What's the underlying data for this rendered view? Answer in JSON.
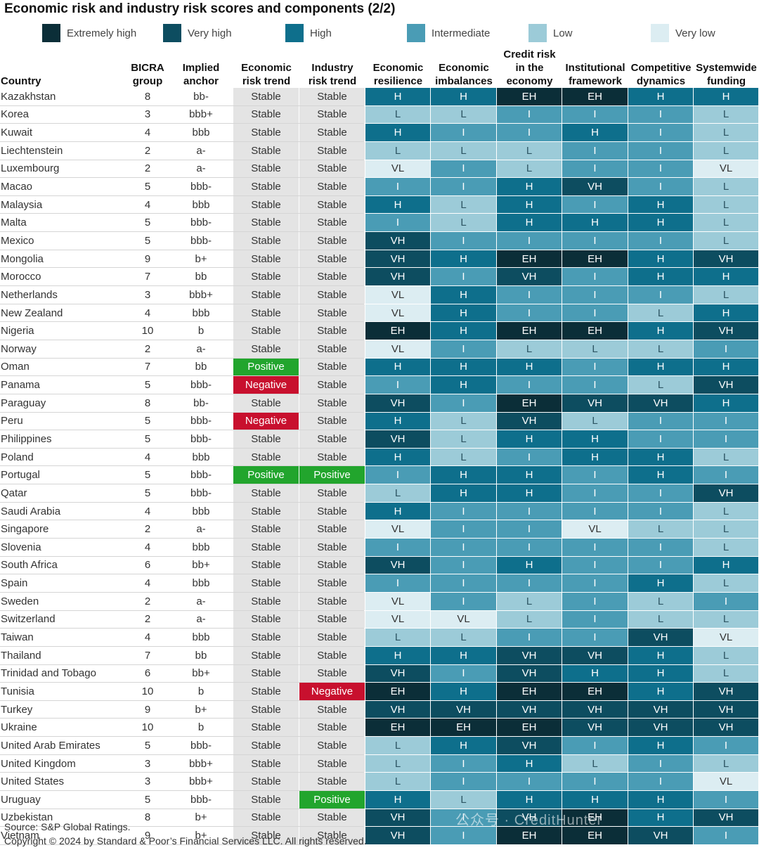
{
  "title": "Economic risk and industry risk scores and components (2/2)",
  "legend": [
    {
      "label": "Extremely high",
      "color": "#0b2e38"
    },
    {
      "label": "Very high",
      "color": "#0d4d60"
    },
    {
      "label": "High",
      "color": "#0e6f8c"
    },
    {
      "label": "Intermediate",
      "color": "#4a9cb5"
    },
    {
      "label": "Low",
      "color": "#9ccbd8"
    },
    {
      "label": "Very low",
      "color": "#dcedf2"
    }
  ],
  "score_colors": {
    "EH": "#0b2e38",
    "VH": "#0d4d60",
    "H": "#0e6f8c",
    "I": "#4a9cb5",
    "L": "#9ccbd8",
    "VL": "#dcedf2"
  },
  "score_text_colors": {
    "EH": "#ffffff",
    "VH": "#ffffff",
    "H": "#ffffff",
    "I": "#ffffff",
    "L": "#2d5563",
    "VL": "#333333"
  },
  "headers": [
    "Country",
    "BICRA\ngroup",
    "Implied\nanchor",
    "Economic\nrisk trend",
    "Industry\nrisk trend",
    "Economic\nresilience",
    "Economic\nimbalances",
    "Credit risk\nin the\neconomy",
    "Institutional\nframework",
    "Competitive\ndynamics",
    "Systemwide\nfunding"
  ],
  "chart_data": {
    "type": "table",
    "columns": [
      "Country",
      "BICRA group",
      "Implied anchor",
      "Economic risk trend",
      "Industry risk trend",
      "Economic resilience",
      "Economic imbalances",
      "Credit risk in the economy",
      "Institutional framework",
      "Competitive dynamics",
      "Systemwide funding"
    ],
    "rows": [
      [
        "Kazakhstan",
        "8",
        "bb-",
        "Stable",
        "Stable",
        "H",
        "H",
        "EH",
        "EH",
        "H",
        "H"
      ],
      [
        "Korea",
        "3",
        "bbb+",
        "Stable",
        "Stable",
        "L",
        "L",
        "I",
        "I",
        "I",
        "L"
      ],
      [
        "Kuwait",
        "4",
        "bbb",
        "Stable",
        "Stable",
        "H",
        "I",
        "I",
        "H",
        "I",
        "L"
      ],
      [
        "Liechtenstein",
        "2",
        "a-",
        "Stable",
        "Stable",
        "L",
        "L",
        "L",
        "I",
        "I",
        "L"
      ],
      [
        "Luxembourg",
        "2",
        "a-",
        "Stable",
        "Stable",
        "VL",
        "I",
        "L",
        "I",
        "I",
        "VL"
      ],
      [
        "Macao",
        "5",
        "bbb-",
        "Stable",
        "Stable",
        "I",
        "I",
        "H",
        "VH",
        "I",
        "L"
      ],
      [
        "Malaysia",
        "4",
        "bbb",
        "Stable",
        "Stable",
        "H",
        "L",
        "H",
        "I",
        "H",
        "L"
      ],
      [
        "Malta",
        "5",
        "bbb-",
        "Stable",
        "Stable",
        "I",
        "L",
        "H",
        "H",
        "H",
        "L"
      ],
      [
        "Mexico",
        "5",
        "bbb-",
        "Stable",
        "Stable",
        "VH",
        "I",
        "I",
        "I",
        "I",
        "L"
      ],
      [
        "Mongolia",
        "9",
        "b+",
        "Stable",
        "Stable",
        "VH",
        "H",
        "EH",
        "EH",
        "H",
        "VH"
      ],
      [
        "Morocco",
        "7",
        "bb",
        "Stable",
        "Stable",
        "VH",
        "I",
        "VH",
        "I",
        "H",
        "H"
      ],
      [
        "Netherlands",
        "3",
        "bbb+",
        "Stable",
        "Stable",
        "VL",
        "H",
        "I",
        "I",
        "I",
        "L"
      ],
      [
        "New Zealand",
        "4",
        "bbb",
        "Stable",
        "Stable",
        "VL",
        "H",
        "I",
        "I",
        "L",
        "H"
      ],
      [
        "Nigeria",
        "10",
        "b",
        "Stable",
        "Stable",
        "EH",
        "H",
        "EH",
        "EH",
        "H",
        "VH"
      ],
      [
        "Norway",
        "2",
        "a-",
        "Stable",
        "Stable",
        "VL",
        "I",
        "L",
        "L",
        "L",
        "I"
      ],
      [
        "Oman",
        "7",
        "bb",
        "Positive",
        "Stable",
        "H",
        "H",
        "H",
        "I",
        "H",
        "H"
      ],
      [
        "Panama",
        "5",
        "bbb-",
        "Negative",
        "Stable",
        "I",
        "H",
        "I",
        "I",
        "L",
        "VH"
      ],
      [
        "Paraguay",
        "8",
        "bb-",
        "Stable",
        "Stable",
        "VH",
        "I",
        "EH",
        "VH",
        "VH",
        "H"
      ],
      [
        "Peru",
        "5",
        "bbb-",
        "Negative",
        "Stable",
        "H",
        "L",
        "VH",
        "L",
        "I",
        "I"
      ],
      [
        "Philippines",
        "5",
        "bbb-",
        "Stable",
        "Stable",
        "VH",
        "L",
        "H",
        "H",
        "I",
        "I"
      ],
      [
        "Poland",
        "4",
        "bbb",
        "Stable",
        "Stable",
        "H",
        "L",
        "I",
        "H",
        "H",
        "L"
      ],
      [
        "Portugal",
        "5",
        "bbb-",
        "Positive",
        "Positive",
        "I",
        "H",
        "H",
        "I",
        "H",
        "I"
      ],
      [
        "Qatar",
        "5",
        "bbb-",
        "Stable",
        "Stable",
        "L",
        "H",
        "H",
        "I",
        "I",
        "VH"
      ],
      [
        "Saudi Arabia",
        "4",
        "bbb",
        "Stable",
        "Stable",
        "H",
        "I",
        "I",
        "I",
        "I",
        "L"
      ],
      [
        "Singapore",
        "2",
        "a-",
        "Stable",
        "Stable",
        "VL",
        "I",
        "I",
        "VL",
        "L",
        "L"
      ],
      [
        "Slovenia",
        "4",
        "bbb",
        "Stable",
        "Stable",
        "I",
        "I",
        "I",
        "I",
        "I",
        "L"
      ],
      [
        "South Africa",
        "6",
        "bb+",
        "Stable",
        "Stable",
        "VH",
        "I",
        "H",
        "I",
        "I",
        "H"
      ],
      [
        "Spain",
        "4",
        "bbb",
        "Stable",
        "Stable",
        "I",
        "I",
        "I",
        "I",
        "H",
        "L"
      ],
      [
        "Sweden",
        "2",
        "a-",
        "Stable",
        "Stable",
        "VL",
        "I",
        "L",
        "I",
        "L",
        "I"
      ],
      [
        "Switzerland",
        "2",
        "a-",
        "Stable",
        "Stable",
        "VL",
        "VL",
        "L",
        "I",
        "L",
        "L"
      ],
      [
        "Taiwan",
        "4",
        "bbb",
        "Stable",
        "Stable",
        "L",
        "L",
        "I",
        "I",
        "VH",
        "VL"
      ],
      [
        "Thailand",
        "7",
        "bb",
        "Stable",
        "Stable",
        "H",
        "H",
        "VH",
        "VH",
        "H",
        "L"
      ],
      [
        "Trinidad and Tobago",
        "6",
        "bb+",
        "Stable",
        "Stable",
        "VH",
        "I",
        "VH",
        "H",
        "H",
        "L"
      ],
      [
        "Tunisia",
        "10",
        "b",
        "Stable",
        "Negative",
        "EH",
        "H",
        "EH",
        "EH",
        "H",
        "VH"
      ],
      [
        "Turkey",
        "9",
        "b+",
        "Stable",
        "Stable",
        "VH",
        "VH",
        "VH",
        "VH",
        "VH",
        "VH"
      ],
      [
        "Ukraine",
        "10",
        "b",
        "Stable",
        "Stable",
        "EH",
        "EH",
        "EH",
        "VH",
        "VH",
        "VH"
      ],
      [
        "United Arab Emirates",
        "5",
        "bbb-",
        "Stable",
        "Stable",
        "L",
        "H",
        "VH",
        "I",
        "H",
        "I"
      ],
      [
        "United Kingdom",
        "3",
        "bbb+",
        "Stable",
        "Stable",
        "L",
        "I",
        "H",
        "L",
        "I",
        "L"
      ],
      [
        "United States",
        "3",
        "bbb+",
        "Stable",
        "Stable",
        "L",
        "I",
        "I",
        "I",
        "I",
        "VL"
      ],
      [
        "Uruguay",
        "5",
        "bbb-",
        "Stable",
        "Positive",
        "H",
        "L",
        "H",
        "H",
        "H",
        "I"
      ],
      [
        "Uzbekistan",
        "8",
        "b+",
        "Stable",
        "Stable",
        "VH",
        "I",
        "VH",
        "EH",
        "H",
        "VH"
      ],
      [
        "Vietnam",
        "9",
        "b+",
        "Stable",
        "Stable",
        "VH",
        "I",
        "EH",
        "EH",
        "VH",
        "I"
      ]
    ]
  },
  "footer": {
    "source": "Source: S&P Global Ratings.",
    "copyright": "Copyright © 2024 by Standard & Poor’s Financial Services LLC. All rights reserved."
  },
  "watermark": "公众号 · CreditHunter"
}
